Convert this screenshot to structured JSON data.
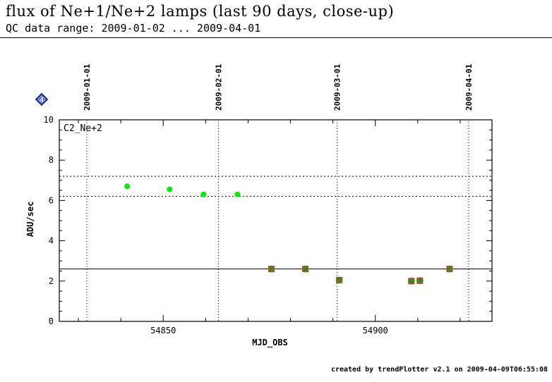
{
  "header": {
    "title": "flux of Ne+1/Ne+2 lamps (last 90 days, close-up)",
    "subtitle": "QC data range: 2009-01-02 ... 2009-04-01"
  },
  "footer": {
    "credit": "created by trendPlotter v2.1 on 2009-04-09T06:55:08"
  },
  "badge": {
    "text": "4",
    "color": "#1f3fd6"
  },
  "chart_data": {
    "type": "scatter",
    "panel_label": "C2_Ne+2",
    "xlabel": "MJD_OBS",
    "ylabel": "ADU/sec",
    "xlim": [
      54825.5,
      54927.5
    ],
    "ylim": [
      0,
      10
    ],
    "x_ticks": [
      54850,
      54900
    ],
    "y_ticks": [
      0,
      2,
      4,
      6,
      8,
      10
    ],
    "date_markers": [
      {
        "label": "2009-01-01",
        "mjd": 54832
      },
      {
        "label": "2009-02-01",
        "mjd": 54863
      },
      {
        "label": "2009-03-01",
        "mjd": 54891
      },
      {
        "label": "2009-04-01",
        "mjd": 54922
      }
    ],
    "reference_line": 2.6,
    "threshold_lines": [
      6.2,
      7.2
    ],
    "series": [
      {
        "style": "green-dot",
        "color": "#00ee00",
        "x": [
          54841.5,
          54851.5,
          54859.5,
          54867.5
        ],
        "y": [
          6.7,
          6.55,
          6.3,
          6.3
        ]
      },
      {
        "style": "red-square-green-star",
        "color": "#d93a1a",
        "x": [
          54875.5,
          54883.5,
          54891.5,
          54908.5,
          54910.5,
          54917.5
        ],
        "y": [
          2.6,
          2.6,
          2.05,
          2.0,
          2.02,
          2.6
        ]
      }
    ]
  }
}
